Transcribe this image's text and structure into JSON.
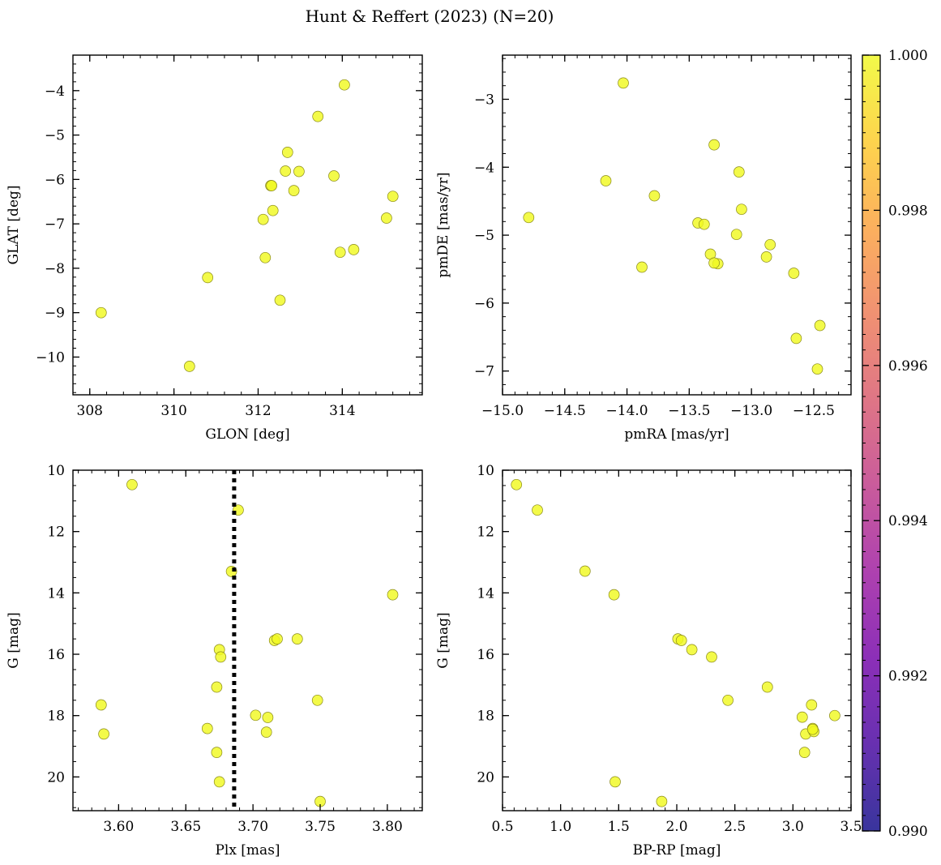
{
  "figure": {
    "title": "Hunt & Reffert (2023) (N=20)",
    "point_color": "#f0f921",
    "point_edge": "#8a8a1a",
    "vline_color": "#000000"
  },
  "colorbar": {
    "min": 0.99,
    "max": 1.0,
    "ticks": [
      0.99,
      0.992,
      0.994,
      0.996,
      0.998,
      1.0
    ],
    "tick_labels": [
      "0.990",
      "0.992",
      "0.994",
      "0.996",
      "0.998",
      "1.000"
    ],
    "colormap": "plasma",
    "stops": [
      "#0d0887",
      "#46039f",
      "#7201a8",
      "#9c179e",
      "#bd3786",
      "#d8576b",
      "#ed7953",
      "#fb9f3a",
      "#fdca26",
      "#f0f921"
    ]
  },
  "chart_data": [
    {
      "type": "scatter",
      "id": "glon-glat",
      "xlabel": "GLON [deg]",
      "ylabel": "GLAT [deg]",
      "xlim": [
        307.6,
        315.9
      ],
      "ylim": [
        -10.85,
        -3.2
      ],
      "y_inverted": false,
      "xticks": [
        308,
        310,
        312,
        314
      ],
      "xtick_labels": [
        "308",
        "310",
        "312",
        "314"
      ],
      "yticks": [
        -4,
        -5,
        -6,
        -7,
        -8,
        -9,
        -10
      ],
      "ytick_labels": [
        "−4",
        "−5",
        "−6",
        "−7",
        "−8",
        "−9",
        "−10"
      ],
      "x": [
        314.05,
        313.42,
        312.7,
        312.65,
        312.97,
        313.8,
        312.3,
        312.32,
        312.85,
        315.2,
        312.35,
        312.12,
        315.05,
        313.95,
        314.27,
        312.17,
        310.8,
        312.52,
        308.27,
        310.37
      ],
      "y": [
        -3.87,
        -4.58,
        -5.39,
        -5.81,
        -5.82,
        -5.92,
        -6.14,
        -6.14,
        -6.25,
        -6.38,
        -6.7,
        -6.9,
        -6.87,
        -7.64,
        -7.58,
        -7.76,
        -8.21,
        -8.72,
        -9.0,
        -10.21
      ]
    },
    {
      "type": "scatter",
      "id": "pmra-pmde",
      "xlabel": "pmRA [mas/yr]",
      "ylabel": "pmDE [mas/yr]",
      "xlim": [
        -15.0,
        -12.2
      ],
      "ylim": [
        -7.35,
        -2.35
      ],
      "y_inverted": false,
      "xticks": [
        -15.0,
        -14.5,
        -14.0,
        -13.5,
        -13.0,
        -12.5
      ],
      "xtick_labels": [
        "−15.0",
        "−14.5",
        "−14.0",
        "−13.5",
        "−13.0",
        "−12.5"
      ],
      "yticks": [
        -3,
        -4,
        -5,
        -6,
        -7
      ],
      "ytick_labels": [
        "−3",
        "−4",
        "−5",
        "−6",
        "−7"
      ],
      "x": [
        -14.03,
        -13.3,
        -14.17,
        -13.1,
        -13.08,
        -13.78,
        -14.79,
        -13.43,
        -13.38,
        -13.12,
        -12.85,
        -13.33,
        -12.88,
        -13.27,
        -13.3,
        -13.88,
        -12.66,
        -12.64,
        -12.45,
        -12.47
      ],
      "y": [
        -2.76,
        -3.67,
        -4.2,
        -4.07,
        -4.62,
        -4.42,
        -4.74,
        -4.82,
        -4.84,
        -4.99,
        -5.14,
        -5.28,
        -5.32,
        -5.42,
        -5.41,
        -5.47,
        -5.56,
        -6.52,
        -6.33,
        -6.97
      ]
    },
    {
      "type": "scatter",
      "id": "plx-g",
      "xlabel": "Plx [mas]",
      "ylabel": "G [mag]",
      "xlim": [
        3.566,
        3.826
      ],
      "ylim": [
        10.0,
        21.1
      ],
      "y_inverted": true,
      "xticks": [
        3.6,
        3.65,
        3.7,
        3.75,
        3.8
      ],
      "xtick_labels": [
        "3.60",
        "3.65",
        "3.70",
        "3.75",
        "3.80"
      ],
      "yticks": [
        10,
        12,
        14,
        16,
        18,
        20
      ],
      "ytick_labels": [
        "10",
        "12",
        "14",
        "16",
        "18",
        "20"
      ],
      "vline": 3.686,
      "x": [
        3.61,
        3.689,
        3.684,
        3.804,
        3.716,
        3.718,
        3.733,
        3.675,
        3.676,
        3.673,
        3.587,
        3.748,
        3.702,
        3.711,
        3.589,
        3.666,
        3.71,
        3.673,
        3.675,
        3.75
      ],
      "y": [
        10.47,
        11.3,
        13.3,
        14.06,
        15.55,
        15.5,
        15.5,
        15.85,
        16.09,
        17.07,
        17.65,
        17.5,
        17.99,
        18.06,
        18.6,
        18.42,
        18.54,
        19.2,
        20.16,
        20.8
      ]
    },
    {
      "type": "scatter",
      "id": "bprp-g",
      "xlabel": "BP-RP [mag]",
      "ylabel": "G [mag]",
      "xlim": [
        0.5,
        3.5
      ],
      "ylim": [
        10.0,
        21.1
      ],
      "y_inverted": true,
      "xticks": [
        0.5,
        1.0,
        1.5,
        2.0,
        2.5,
        3.0,
        3.5
      ],
      "xtick_labels": [
        "0.5",
        "1.0",
        "1.5",
        "2.0",
        "2.5",
        "3.0",
        "3.5"
      ],
      "yticks": [
        10,
        12,
        14,
        16,
        18,
        20
      ],
      "ytick_labels": [
        "10",
        "12",
        "14",
        "16",
        "18",
        "20"
      ],
      "x": [
        0.62,
        0.8,
        1.21,
        1.46,
        2.01,
        2.04,
        2.13,
        2.3,
        2.44,
        2.78,
        3.16,
        3.08,
        3.36,
        3.11,
        3.17,
        3.18,
        3.1,
        1.47,
        1.87,
        3.17
      ],
      "y": [
        10.47,
        11.3,
        13.29,
        14.06,
        15.5,
        15.55,
        15.85,
        16.09,
        17.5,
        17.07,
        17.65,
        18.05,
        18.0,
        18.6,
        18.42,
        18.52,
        19.2,
        20.16,
        20.8,
        18.45
      ]
    }
  ]
}
